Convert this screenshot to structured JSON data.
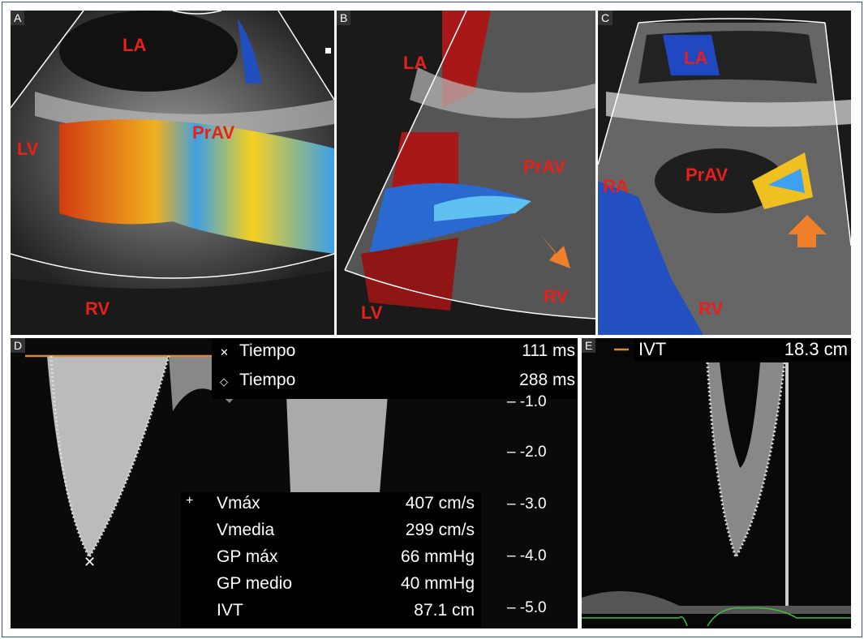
{
  "panels": {
    "a": {
      "label": "A",
      "structures": [
        "LA",
        "LV",
        "PrAV",
        "RV"
      ]
    },
    "b": {
      "label": "B",
      "structures": [
        "LA",
        "PrAV",
        "LV",
        "RV"
      ]
    },
    "c": {
      "label": "C",
      "structures": [
        "LA",
        "RA",
        "PrAV",
        "RV"
      ]
    },
    "d": {
      "label": "D",
      "timings": [
        {
          "marker": "cross-marker-icon",
          "name": "Tiempo",
          "value": "111 ms"
        },
        {
          "marker": "diamond-marker-icon",
          "name": "Tiempo",
          "value": "288 ms"
        }
      ],
      "measurements": [
        {
          "marker": "+",
          "name": "Vmáx",
          "value": "407 cm/s"
        },
        {
          "marker": "",
          "name": "Vmedia",
          "value": "299 cm/s"
        },
        {
          "marker": "",
          "name": "GP máx",
          "value": "66 mmHg"
        },
        {
          "marker": "",
          "name": "GP medio",
          "value": "40 mmHg"
        },
        {
          "marker": "",
          "name": "IVT",
          "value": "87.1 cm"
        }
      ],
      "scale_ticks": [
        "-1.0",
        "-2.0",
        "-3.0",
        "-4.0",
        "-5.0"
      ]
    },
    "e": {
      "label": "E",
      "measurement": {
        "name": "IVT",
        "value": "18.3 cm"
      }
    }
  },
  "colors": {
    "border": "#2b5797",
    "label_red": "#e8201c",
    "arrow": "#f07f2a",
    "ecg": "#3fbf3f",
    "baseline": "#d98a3a"
  },
  "arrow_icon": "arrow-up-right-icon"
}
